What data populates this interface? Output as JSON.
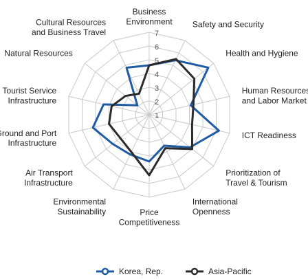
{
  "chart_data": {
    "type": "radar",
    "categories": [
      "Business\nEnvironment",
      "Safety and Security",
      "Health and Hygiene",
      "Human Resources\nand Labor Market",
      "ICT Readiness",
      "Prioritization of\nTravel & Tourism",
      "International\nOpenness",
      "Price\nCompetitiveness",
      "Environmental\nSustainability",
      "Air Transport\nInfrastructure",
      "Ground and Port\nInfrastructure",
      "Tourist Service\nInfrastructure",
      "Natural Resources",
      "Cultural Resources\nand Business Travel"
    ],
    "series": [
      {
        "name": "Korea, Rep.",
        "color": "#1f5ba3",
        "values": [
          4.6,
          5.4,
          6.5,
          4.1,
          6.2,
          4.8,
          3.5,
          4.4,
          4.2,
          4.4,
          5.2,
          4.4,
          2.1,
          4.8
        ]
      },
      {
        "name": "Asia-Pacific",
        "color": "#2b2b2b",
        "values": [
          4.6,
          5.5,
          5.2,
          4.3,
          4.2,
          5.0,
          3.7,
          5.4,
          4.0,
          3.7,
          4.0,
          3.8,
          3.2,
          2.7
        ]
      }
    ],
    "ylim": [
      1,
      7
    ],
    "yticks": [
      1,
      2,
      3,
      4,
      5,
      6,
      7
    ],
    "grid": true,
    "legend": "bottom"
  }
}
